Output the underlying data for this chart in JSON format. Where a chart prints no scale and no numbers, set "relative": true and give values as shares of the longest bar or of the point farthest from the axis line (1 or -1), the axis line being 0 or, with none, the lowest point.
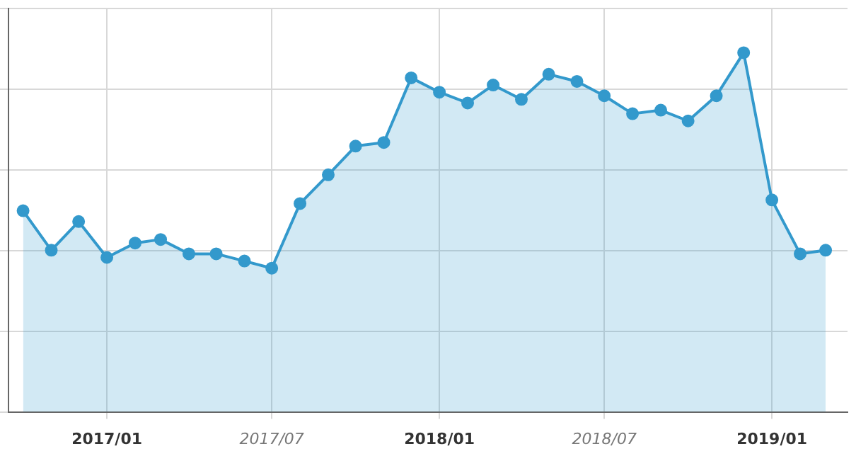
{
  "chart_data": {
    "type": "area",
    "relative": true,
    "grid": true,
    "marker": "circle",
    "line_style": "solid",
    "legend": false,
    "x": [
      "2016-10",
      "2016-11",
      "2016-12",
      "2017-01",
      "2017-02",
      "2017-03",
      "2017-04",
      "2017-05",
      "2017-06",
      "2017-07",
      "2017-08",
      "2017-09",
      "2017-10",
      "2017-11",
      "2017-12",
      "2018-01",
      "2018-02",
      "2018-03",
      "2018-04",
      "2018-05",
      "2018-06",
      "2018-07",
      "2018-08",
      "2018-09",
      "2018-10",
      "2018-11",
      "2018-12",
      "2019-01",
      "2019-02",
      "2019-03"
    ],
    "xlim": [
      "2016-09-15",
      "2019-03-25"
    ],
    "xticks": [
      {
        "value": "2017-01",
        "label": "2017/01"
      },
      {
        "value": "2017-07",
        "label": "2017/07"
      },
      {
        "value": "2018-01",
        "label": "2018/01"
      },
      {
        "value": "2018-07",
        "label": "2018/07"
      },
      {
        "value": "2019-01",
        "label": "2019/01"
      }
    ],
    "series": [
      {
        "color": "#3399cc",
        "values": [
          0.56,
          0.45,
          0.53,
          0.43,
          0.47,
          0.48,
          0.44,
          0.44,
          0.42,
          0.4,
          0.58,
          0.66,
          0.74,
          0.75,
          0.93,
          0.89,
          0.86,
          0.91,
          0.87,
          0.94,
          0.92,
          0.88,
          0.83,
          0.84,
          0.81,
          0.88,
          1,
          0.59,
          0.44,
          0.45
        ]
      }
    ]
  }
}
